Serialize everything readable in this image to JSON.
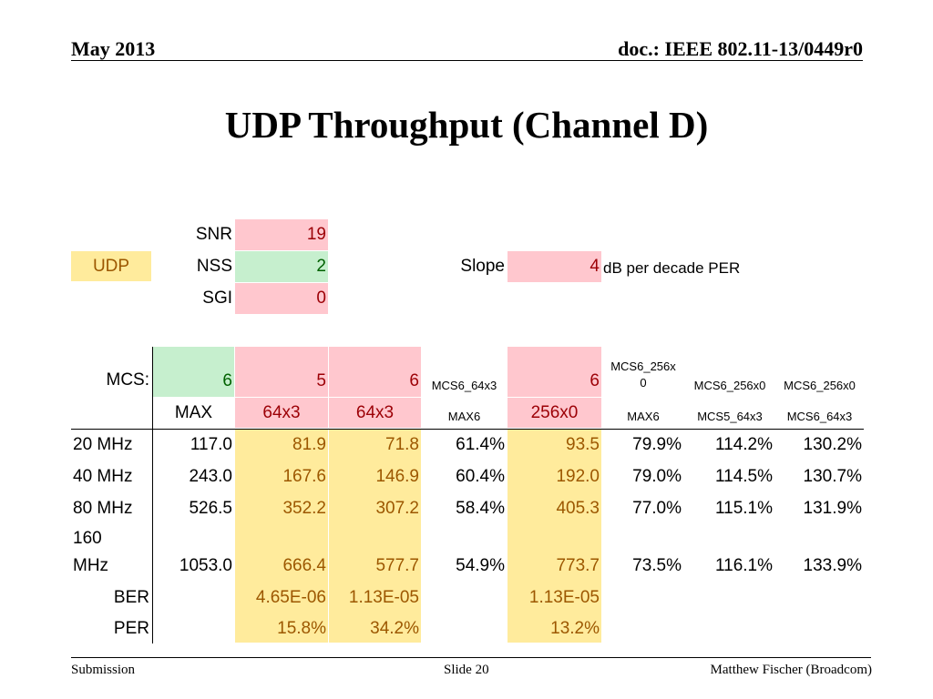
{
  "header": {
    "left": "May 2013",
    "right": "doc.: IEEE 802.11-13/0449r0"
  },
  "title": "UDP Throughput (Channel D)",
  "params": {
    "snr_label": "SNR",
    "snr_value": "19",
    "udp_label": "UDP",
    "nss_label": "NSS",
    "nss_value": "2",
    "sgi_label": "SGI",
    "sgi_value": "0",
    "slope_label": "Slope",
    "slope_value": "4",
    "slope_unit": "dB per decade PER"
  },
  "table": {
    "mcs_label": "MCS:",
    "mcs_values": [
      "6",
      "5",
      "6",
      "6"
    ],
    "col_a_label": "MCS6_64x3",
    "col_a_sub": "MAX6",
    "sub_labels": [
      "MAX",
      "64x3",
      "64x3",
      "256x0"
    ],
    "ratio_headers": [
      {
        "top": "MCS6_256x0",
        "bottom": "MAX6"
      },
      {
        "top": "MCS6_256x0",
        "bottom": "MCS5_64x3"
      },
      {
        "top": "MCS6_256x0",
        "bottom": "MCS6_64x3"
      }
    ],
    "rows": [
      {
        "bw": "20 MHz",
        "max": "117.0",
        "mcs5": "81.9",
        "mcs6": "71.8",
        "pct_a": "61.4%",
        "mcs6_256": "93.5",
        "r1": "79.9%",
        "r2": "114.2%",
        "r3": "130.2%"
      },
      {
        "bw": "40 MHz",
        "max": "243.0",
        "mcs5": "167.6",
        "mcs6": "146.9",
        "pct_a": "60.4%",
        "mcs6_256": "192.0",
        "r1": "79.0%",
        "r2": "114.5%",
        "r3": "130.7%"
      },
      {
        "bw": "80 MHz",
        "max": "526.5",
        "mcs5": "352.2",
        "mcs6": "307.2",
        "pct_a": "58.4%",
        "mcs6_256": "405.3",
        "r1": "77.0%",
        "r2": "115.1%",
        "r3": "131.9%"
      },
      {
        "bw_line1": "160",
        "bw_line2": "MHz",
        "max": "1053.0",
        "mcs5": "666.4",
        "mcs6": "577.7",
        "pct_a": "54.9%",
        "mcs6_256": "773.7",
        "r1": "73.5%",
        "r2": "116.1%",
        "r3": "133.9%"
      }
    ],
    "ber": {
      "label": "BER",
      "mcs5": "4.65E-06",
      "mcs6": "1.13E-05",
      "mcs6_256": "1.13E-05"
    },
    "per": {
      "label": "PER",
      "mcs5": "15.8%",
      "mcs6": "34.2%",
      "mcs6_256": "13.2%"
    }
  },
  "footer": {
    "left": "Submission",
    "center": "Slide 20",
    "right": "Matthew Fischer (Broadcom)"
  },
  "colors": {
    "pink_fill": "#ffc7ce",
    "green_fill": "#c6efce",
    "yellow_fill": "#ffeb9c",
    "red_text": "#9c0006",
    "green_text": "#006100",
    "brown_text": "#9c5700"
  }
}
